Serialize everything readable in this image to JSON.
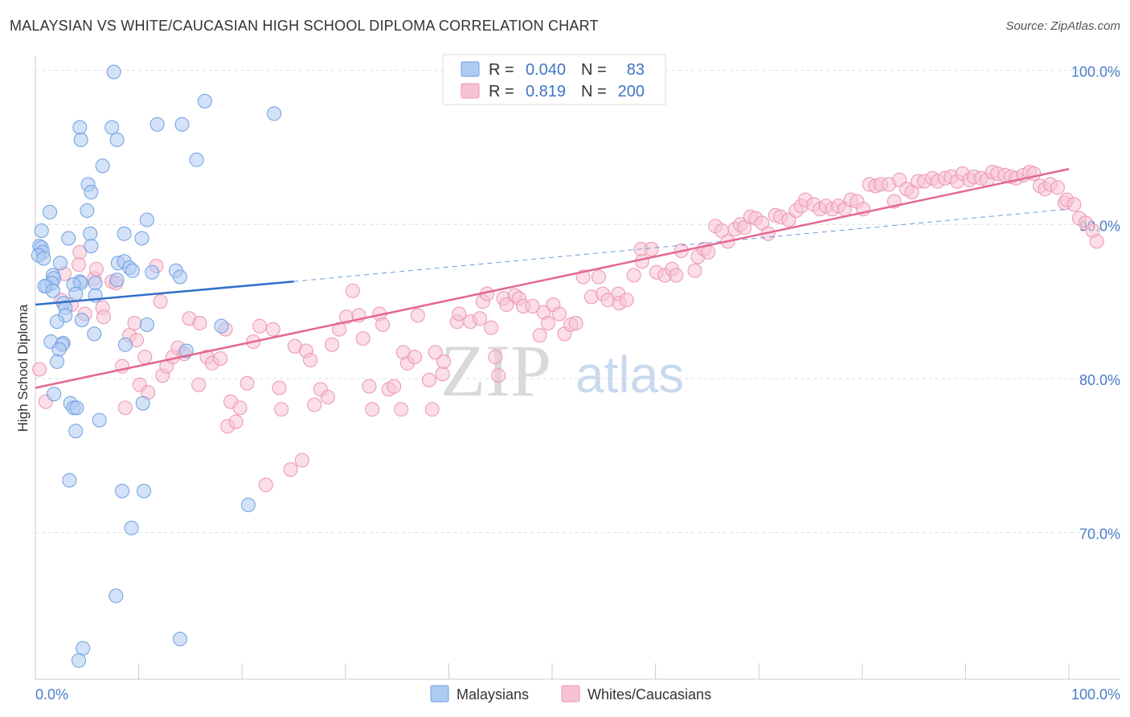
{
  "title": "MALAYSIAN VS WHITE/CAUCASIAN HIGH SCHOOL DIPLOMA CORRELATION CHART",
  "source": "Source: ZipAtlas.com",
  "watermark": {
    "zip": "ZIP",
    "atlas": "atlas"
  },
  "legend": {
    "rows": [
      {
        "r_label": "R =",
        "r_value": "0.040",
        "n_label": "N =",
        "n_value": "83"
      },
      {
        "r_label": "R =",
        "r_value": "0.819",
        "n_label": "N =",
        "n_value": "200"
      }
    ]
  },
  "bottom_legend": [
    "Malaysians",
    "Whites/Caucasians"
  ],
  "colors": {
    "blue_fill": "#aecbf2",
    "blue_stroke": "#6f9fe0",
    "blue_line": "#2f6fc9",
    "pink_fill": "#f7c3d3",
    "pink_stroke": "#ec95b1",
    "pink_line": "#e4688f",
    "tick_text": "#4a7cc9",
    "grid": "#dddddd"
  },
  "chart_data": {
    "type": "scatter",
    "title": "MALAYSIAN VS WHITE/CAUCASIAN HIGH SCHOOL DIPLOMA CORRELATION CHART",
    "xlabel": "",
    "ylabel": "High School Diploma",
    "xlim": [
      0,
      100
    ],
    "ylim": [
      61,
      101
    ],
    "x_ticks": [
      "0.0%",
      "100.0%"
    ],
    "y_ticks": [
      {
        "value": 100,
        "label": "100.0%"
      },
      {
        "value": 90,
        "label": "90.0%"
      },
      {
        "value": 80,
        "label": "80.0%"
      },
      {
        "value": 70,
        "label": "70.0%"
      }
    ],
    "grid": "horizontal dashed",
    "legend_position": "top-center",
    "series": [
      {
        "name": "Malaysians",
        "color": "#6f9fe0",
        "r": 0.04,
        "n": 83,
        "trend": {
          "x": [
            0,
            25
          ],
          "y": [
            84.8,
            86.3
          ],
          "dashed_to": [
            100,
            91.0
          ]
        },
        "points": [
          [
            7.6,
            99.9
          ],
          [
            16.4,
            98.0
          ],
          [
            23.1,
            97.2
          ],
          [
            4.3,
            96.3
          ],
          [
            7.4,
            96.3
          ],
          [
            11.8,
            96.5
          ],
          [
            14.2,
            96.5
          ],
          [
            4.4,
            95.5
          ],
          [
            7.9,
            95.5
          ],
          [
            15.6,
            94.2
          ],
          [
            6.5,
            93.8
          ],
          [
            5.1,
            92.6
          ],
          [
            5.4,
            92.1
          ],
          [
            1.4,
            90.8
          ],
          [
            5.0,
            90.9
          ],
          [
            10.8,
            90.3
          ],
          [
            0.6,
            89.6
          ],
          [
            3.2,
            89.1
          ],
          [
            5.3,
            89.4
          ],
          [
            8.6,
            89.4
          ],
          [
            10.3,
            89.1
          ],
          [
            0.4,
            88.6
          ],
          [
            0.6,
            88.5
          ],
          [
            0.7,
            88.2
          ],
          [
            0.3,
            88.0
          ],
          [
            0.8,
            87.8
          ],
          [
            5.4,
            88.6
          ],
          [
            2.4,
            87.5
          ],
          [
            4.3,
            86.3
          ],
          [
            8.0,
            87.5
          ],
          [
            8.6,
            87.6
          ],
          [
            9.1,
            87.2
          ],
          [
            9.4,
            87.0
          ],
          [
            11.3,
            86.9
          ],
          [
            13.6,
            87.0
          ],
          [
            14.0,
            86.6
          ],
          [
            1.7,
            86.7
          ],
          [
            1.8,
            86.5
          ],
          [
            1.1,
            86.0
          ],
          [
            1.6,
            86.2
          ],
          [
            0.9,
            86.0
          ],
          [
            4.4,
            86.2
          ],
          [
            5.8,
            86.2
          ],
          [
            7.9,
            86.4
          ],
          [
            3.7,
            86.1
          ],
          [
            1.7,
            85.7
          ],
          [
            3.9,
            85.5
          ],
          [
            5.8,
            85.4
          ],
          [
            2.7,
            84.9
          ],
          [
            2.9,
            84.6
          ],
          [
            2.9,
            84.1
          ],
          [
            2.1,
            83.7
          ],
          [
            4.5,
            83.8
          ],
          [
            10.8,
            83.5
          ],
          [
            18.0,
            83.4
          ],
          [
            5.7,
            82.9
          ],
          [
            1.5,
            82.4
          ],
          [
            2.7,
            82.3
          ],
          [
            2.6,
            82.2
          ],
          [
            2.3,
            81.9
          ],
          [
            2.1,
            81.1
          ],
          [
            8.7,
            82.2
          ],
          [
            14.6,
            81.8
          ],
          [
            1.8,
            79.0
          ],
          [
            3.4,
            78.4
          ],
          [
            3.7,
            78.1
          ],
          [
            4.0,
            78.1
          ],
          [
            10.4,
            78.4
          ],
          [
            6.2,
            77.3
          ],
          [
            3.9,
            76.6
          ],
          [
            3.3,
            73.4
          ],
          [
            8.4,
            72.7
          ],
          [
            10.5,
            72.7
          ],
          [
            20.6,
            71.8
          ],
          [
            9.3,
            70.3
          ],
          [
            7.8,
            65.9
          ],
          [
            14.0,
            63.1
          ],
          [
            4.6,
            62.5
          ],
          [
            4.2,
            61.7
          ]
        ]
      },
      {
        "name": "Whites/Caucasians",
        "color": "#ec95b1",
        "r": 0.819,
        "n": 200,
        "trend": {
          "x": [
            0,
            100
          ],
          "y": [
            79.4,
            93.6
          ]
        },
        "points": [
          [
            0.4,
            80.6
          ],
          [
            1.0,
            78.5
          ],
          [
            2.5,
            85.1
          ],
          [
            2.8,
            86.8
          ],
          [
            3.5,
            84.8
          ],
          [
            4.3,
            88.2
          ],
          [
            4.2,
            87.4
          ],
          [
            4.8,
            84.2
          ],
          [
            5.7,
            86.5
          ],
          [
            5.9,
            87.1
          ],
          [
            6.5,
            84.6
          ],
          [
            6.6,
            84.0
          ],
          [
            7.4,
            86.3
          ],
          [
            7.8,
            86.2
          ],
          [
            8.4,
            80.8
          ],
          [
            8.7,
            78.1
          ],
          [
            9.1,
            82.8
          ],
          [
            9.6,
            83.6
          ],
          [
            9.8,
            82.5
          ],
          [
            10.1,
            79.6
          ],
          [
            10.6,
            81.4
          ],
          [
            10.9,
            79.1
          ],
          [
            11.7,
            87.3
          ],
          [
            12.1,
            85.0
          ],
          [
            12.3,
            80.2
          ],
          [
            12.7,
            80.8
          ],
          [
            13.3,
            81.4
          ],
          [
            13.8,
            82.0
          ],
          [
            14.4,
            81.6
          ],
          [
            14.9,
            83.9
          ],
          [
            15.9,
            83.6
          ],
          [
            15.8,
            79.6
          ],
          [
            16.6,
            81.4
          ],
          [
            17.1,
            81.0
          ],
          [
            17.9,
            81.3
          ],
          [
            18.4,
            83.2
          ],
          [
            18.6,
            76.9
          ],
          [
            18.9,
            78.5
          ],
          [
            19.4,
            77.2
          ],
          [
            19.8,
            78.1
          ],
          [
            20.5,
            79.7
          ],
          [
            21.1,
            82.4
          ],
          [
            21.7,
            83.4
          ],
          [
            22.3,
            73.1
          ],
          [
            23.0,
            83.2
          ],
          [
            23.6,
            79.4
          ],
          [
            23.8,
            78.0
          ],
          [
            24.7,
            74.1
          ],
          [
            25.1,
            82.1
          ],
          [
            25.8,
            74.7
          ],
          [
            26.2,
            81.8
          ],
          [
            26.6,
            81.2
          ],
          [
            27.0,
            78.3
          ],
          [
            27.6,
            79.3
          ],
          [
            28.3,
            78.8
          ],
          [
            28.7,
            82.2
          ],
          [
            29.4,
            83.2
          ],
          [
            30.1,
            84.0
          ],
          [
            30.7,
            85.7
          ],
          [
            31.3,
            84.1
          ],
          [
            31.7,
            82.6
          ],
          [
            32.3,
            79.5
          ],
          [
            32.6,
            78.0
          ],
          [
            33.3,
            84.2
          ],
          [
            33.6,
            83.5
          ],
          [
            34.2,
            79.3
          ],
          [
            34.7,
            79.5
          ],
          [
            35.4,
            78.0
          ],
          [
            35.6,
            81.7
          ],
          [
            36.0,
            81.0
          ],
          [
            36.7,
            81.4
          ],
          [
            37.0,
            84.1
          ],
          [
            38.1,
            79.9
          ],
          [
            38.4,
            78.0
          ],
          [
            38.7,
            81.7
          ],
          [
            39.4,
            80.3
          ],
          [
            39.5,
            81.1
          ],
          [
            40.8,
            83.7
          ],
          [
            41.0,
            84.2
          ],
          [
            42.1,
            83.7
          ],
          [
            43.0,
            83.9
          ],
          [
            43.3,
            85.0
          ],
          [
            43.7,
            85.5
          ],
          [
            44.1,
            83.3
          ],
          [
            44.5,
            81.4
          ],
          [
            44.8,
            80.2
          ],
          [
            45.3,
            85.2
          ],
          [
            45.6,
            84.8
          ],
          [
            46.4,
            85.4
          ],
          [
            46.8,
            85.2
          ],
          [
            47.2,
            84.7
          ],
          [
            48.1,
            84.7
          ],
          [
            48.8,
            82.8
          ],
          [
            49.2,
            84.3
          ],
          [
            49.6,
            83.6
          ],
          [
            50.1,
            84.8
          ],
          [
            50.7,
            84.2
          ],
          [
            51.2,
            82.9
          ],
          [
            51.8,
            83.5
          ],
          [
            52.3,
            83.6
          ],
          [
            53.0,
            86.6
          ],
          [
            53.8,
            85.3
          ],
          [
            54.5,
            86.6
          ],
          [
            54.9,
            85.5
          ],
          [
            55.4,
            85.1
          ],
          [
            56.4,
            85.5
          ],
          [
            56.5,
            84.9
          ],
          [
            57.2,
            85.1
          ],
          [
            57.9,
            86.7
          ],
          [
            58.6,
            88.4
          ],
          [
            58.7,
            87.6
          ],
          [
            59.6,
            88.4
          ],
          [
            60.1,
            86.9
          ],
          [
            60.9,
            86.7
          ],
          [
            61.6,
            87.1
          ],
          [
            62.0,
            86.7
          ],
          [
            62.5,
            88.3
          ],
          [
            63.8,
            87.0
          ],
          [
            64.1,
            87.9
          ],
          [
            64.7,
            88.4
          ],
          [
            65.1,
            88.2
          ],
          [
            65.8,
            89.9
          ],
          [
            66.4,
            89.6
          ],
          [
            67.0,
            88.9
          ],
          [
            67.7,
            89.7
          ],
          [
            68.2,
            90.0
          ],
          [
            68.6,
            89.8
          ],
          [
            69.2,
            90.5
          ],
          [
            69.7,
            90.4
          ],
          [
            70.3,
            90.1
          ],
          [
            70.9,
            89.4
          ],
          [
            71.6,
            90.6
          ],
          [
            72.1,
            90.5
          ],
          [
            72.9,
            90.3
          ],
          [
            73.6,
            90.9
          ],
          [
            74.1,
            91.2
          ],
          [
            74.5,
            91.6
          ],
          [
            75.3,
            91.3
          ],
          [
            75.9,
            91.0
          ],
          [
            76.5,
            91.2
          ],
          [
            77.1,
            91.0
          ],
          [
            77.7,
            91.2
          ],
          [
            78.3,
            91.0
          ],
          [
            78.9,
            91.6
          ],
          [
            79.5,
            91.5
          ],
          [
            80.1,
            91.0
          ],
          [
            80.7,
            92.6
          ],
          [
            81.3,
            92.5
          ],
          [
            81.8,
            92.6
          ],
          [
            82.6,
            92.6
          ],
          [
            83.1,
            91.5
          ],
          [
            83.6,
            92.9
          ],
          [
            84.3,
            92.3
          ],
          [
            84.8,
            92.1
          ],
          [
            85.4,
            92.8
          ],
          [
            86.0,
            92.8
          ],
          [
            86.8,
            93.0
          ],
          [
            87.3,
            92.8
          ],
          [
            88.0,
            93.0
          ],
          [
            88.6,
            93.1
          ],
          [
            89.2,
            92.8
          ],
          [
            89.7,
            93.3
          ],
          [
            90.4,
            92.9
          ],
          [
            90.8,
            93.1
          ],
          [
            91.5,
            93.0
          ],
          [
            92.1,
            92.9
          ],
          [
            92.6,
            93.4
          ],
          [
            93.1,
            93.3
          ],
          [
            93.8,
            93.2
          ],
          [
            94.4,
            93.1
          ],
          [
            94.9,
            93.0
          ],
          [
            95.6,
            93.2
          ],
          [
            96.2,
            93.4
          ],
          [
            96.6,
            93.3
          ],
          [
            97.2,
            92.5
          ],
          [
            97.7,
            92.3
          ],
          [
            98.2,
            92.6
          ],
          [
            98.9,
            92.4
          ],
          [
            99.6,
            91.4
          ],
          [
            99.8,
            91.6
          ],
          [
            100.5,
            91.3
          ],
          [
            101.0,
            90.4
          ],
          [
            101.6,
            90.1
          ],
          [
            102.3,
            89.6
          ],
          [
            102.7,
            88.9
          ]
        ]
      }
    ]
  }
}
